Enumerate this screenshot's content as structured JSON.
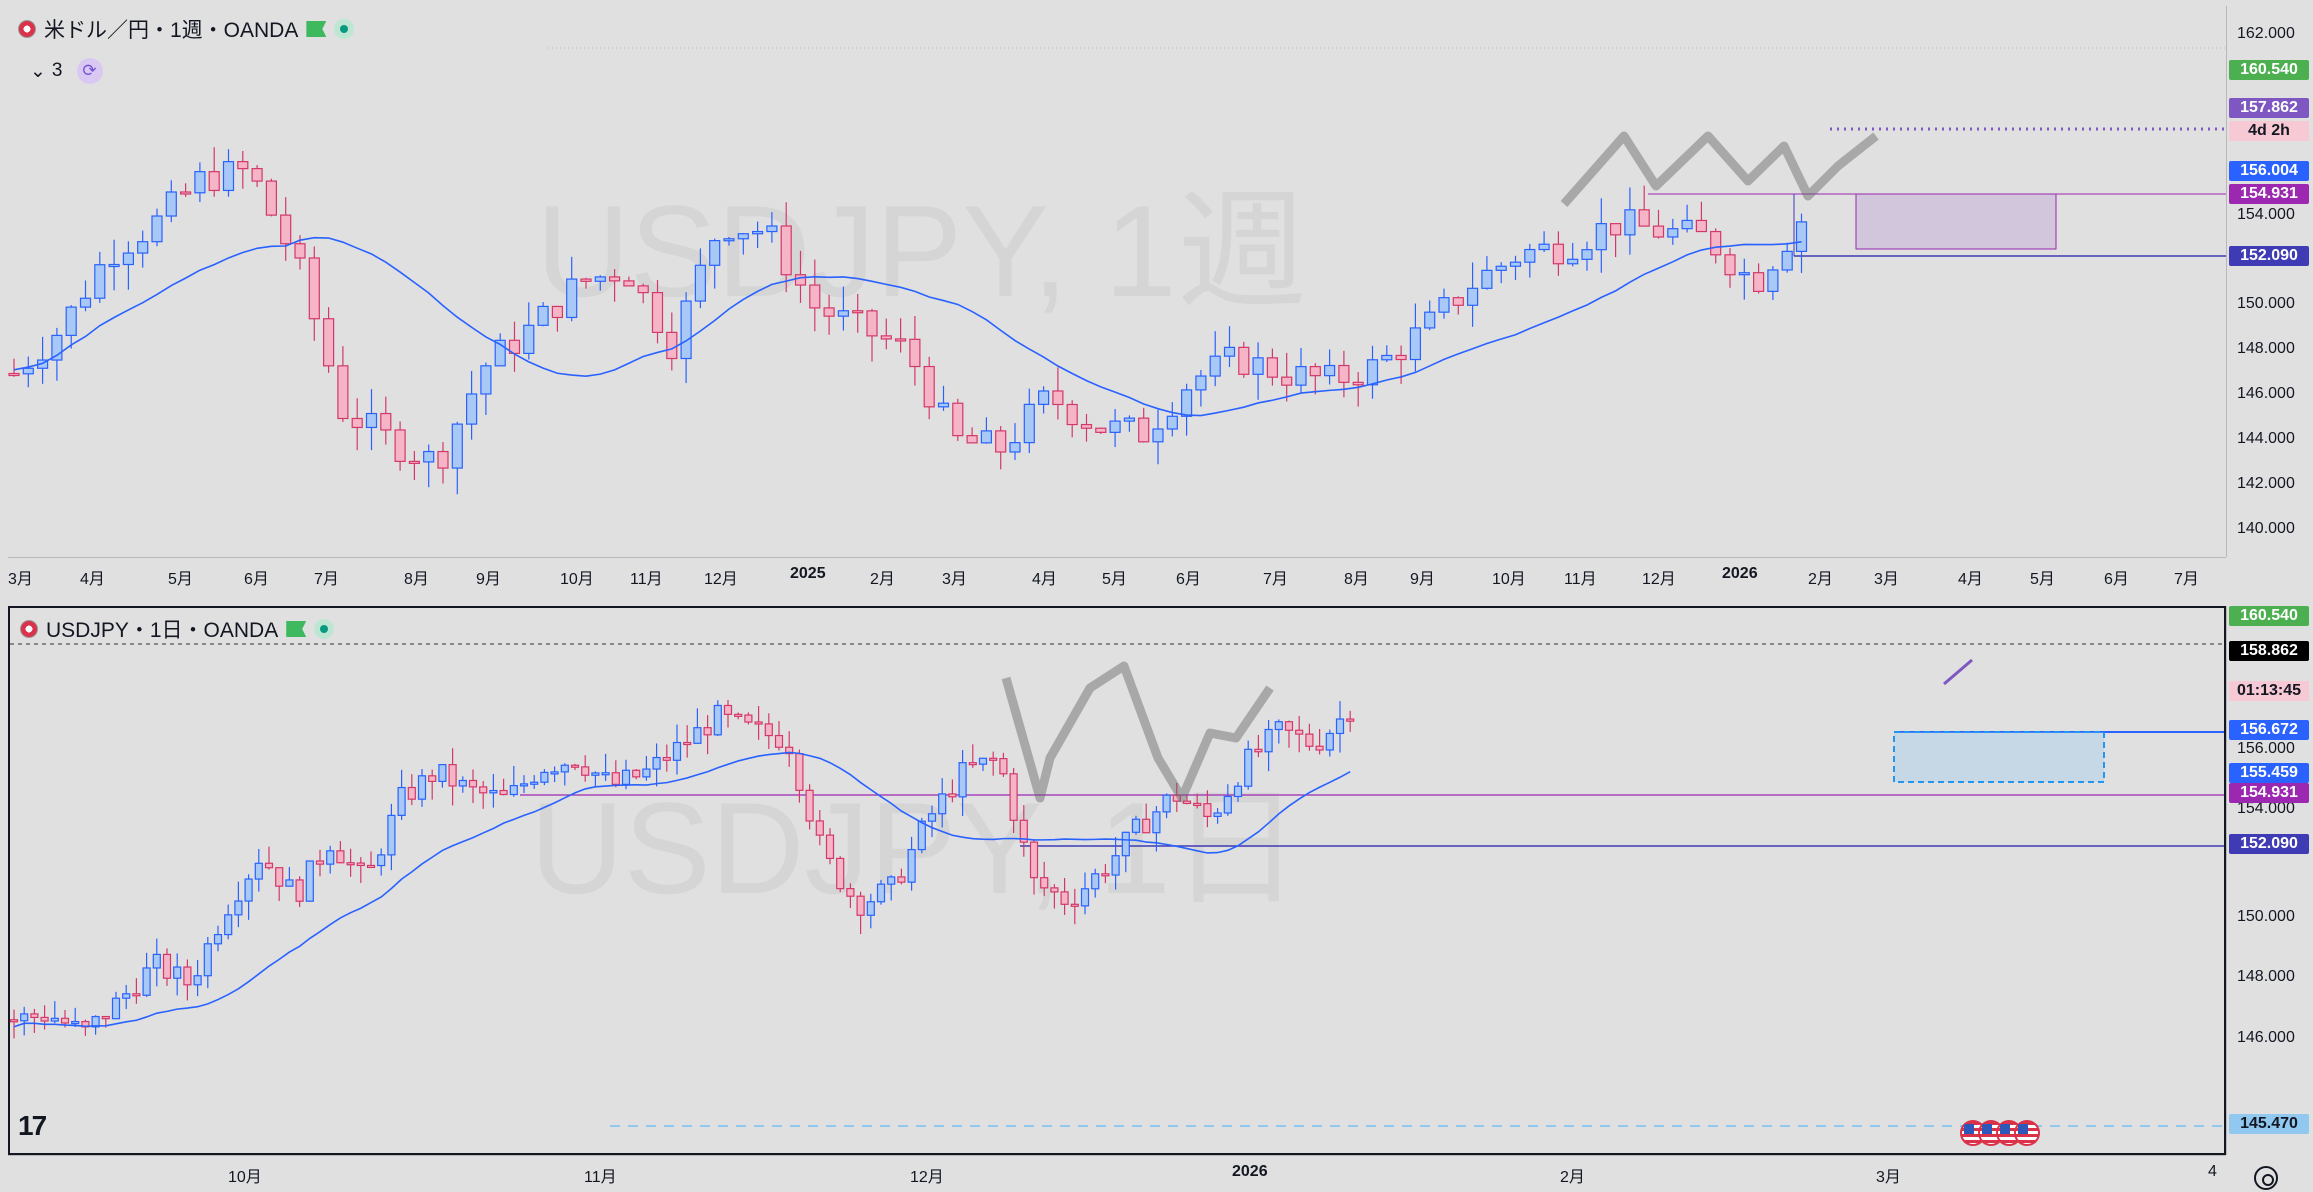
{
  "top_chart": {
    "title": "米ドル／円・1週・OANDA",
    "indicator_count": "3",
    "watermark": "USDJPY, 1週",
    "price_ticks": [
      "162.000",
      "154.000",
      "150.000",
      "148.000",
      "146.000",
      "144.000",
      "142.000",
      "140.000"
    ],
    "price_tags": [
      {
        "label": "160.540",
        "color": "#4caf50"
      },
      {
        "label": "157.862",
        "color": "#7e57c2"
      },
      {
        "label": "4d 2h",
        "color": "#f7c9d4"
      },
      {
        "label": "156.004",
        "color": "#2962ff"
      },
      {
        "label": "154.931",
        "color": "#9c27b0"
      },
      {
        "label": "152.090",
        "color": "#3f3bb5"
      }
    ],
    "date_labels": [
      "3月",
      "4月",
      "5月",
      "6月",
      "7月",
      "8月",
      "9月",
      "10月",
      "11月",
      "12月",
      "2025",
      "2月",
      "3月",
      "4月",
      "5月",
      "6月",
      "7月",
      "8月",
      "9月",
      "10月",
      "11月",
      "12月",
      "2026",
      "2月",
      "3月",
      "4月",
      "5月",
      "6月",
      "7月"
    ]
  },
  "bottom_chart": {
    "title": "USDJPY・1日・OANDA",
    "watermark": "USDJPY, 1日",
    "price_ticks": [
      "156.000",
      "154.000",
      "150.000",
      "148.000",
      "146.000"
    ],
    "price_tags": [
      {
        "label": "160.540",
        "color": "#4caf50"
      },
      {
        "label": "158.862",
        "color": "#000000"
      },
      {
        "label": "01:13:45",
        "color": "#f7c9d4"
      },
      {
        "label": "156.672",
        "color": "#2962ff"
      },
      {
        "label": "155.459",
        "color": "#2962ff"
      },
      {
        "label": "154.931",
        "color": "#9c27b0"
      },
      {
        "label": "152.090",
        "color": "#3f3bb5"
      },
      {
        "label": "145.470",
        "color": "#90c8f0"
      }
    ],
    "date_labels": [
      "10月",
      "11月",
      "12月",
      "2026",
      "2月",
      "3月",
      "4"
    ],
    "logo": "17"
  },
  "colors": {
    "up": "#a8c8f5",
    "up_border": "#2962ff",
    "down": "#f5b5c6",
    "down_border": "#d3386a",
    "ma": "#2962ff",
    "purple": "#9c27b0"
  }
}
